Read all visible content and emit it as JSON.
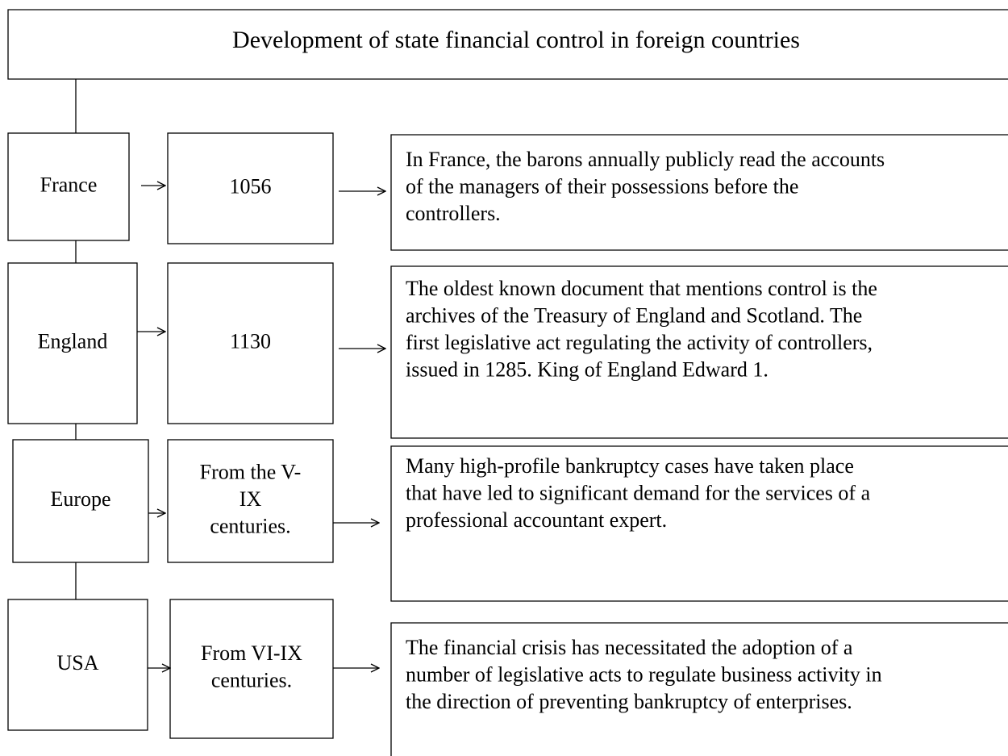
{
  "title": "Development of state financial control in foreign countries",
  "rows": [
    {
      "country": "France",
      "period": [
        "1056"
      ],
      "description": [
        "In France, the barons annually publicly read the accounts",
        "of the managers of their possessions before the",
        "controllers."
      ]
    },
    {
      "country": "England",
      "period": [
        "1130"
      ],
      "description": [
        "The oldest known document that mentions control is the",
        "archives of the Treasury of England and Scotland. The",
        "first legislative act regulating the activity of controllers,",
        "issued in 1285. King of England Edward 1."
      ]
    },
    {
      "country": "Europe",
      "period": [
        "From the V-",
        "IX",
        "centuries."
      ],
      "description": [
        "Many high-profile bankruptcy cases have taken place",
        "that have led to significant demand for the services of a",
        "professional accountant expert."
      ]
    },
    {
      "country": "USA",
      "period": [
        "From VI-IX",
        "centuries."
      ],
      "description": [
        "The financial crisis has necessitated the adoption of a",
        "number of legislative acts to regulate business activity in",
        "the direction of preventing bankruptcy of enterprises."
      ]
    }
  ]
}
